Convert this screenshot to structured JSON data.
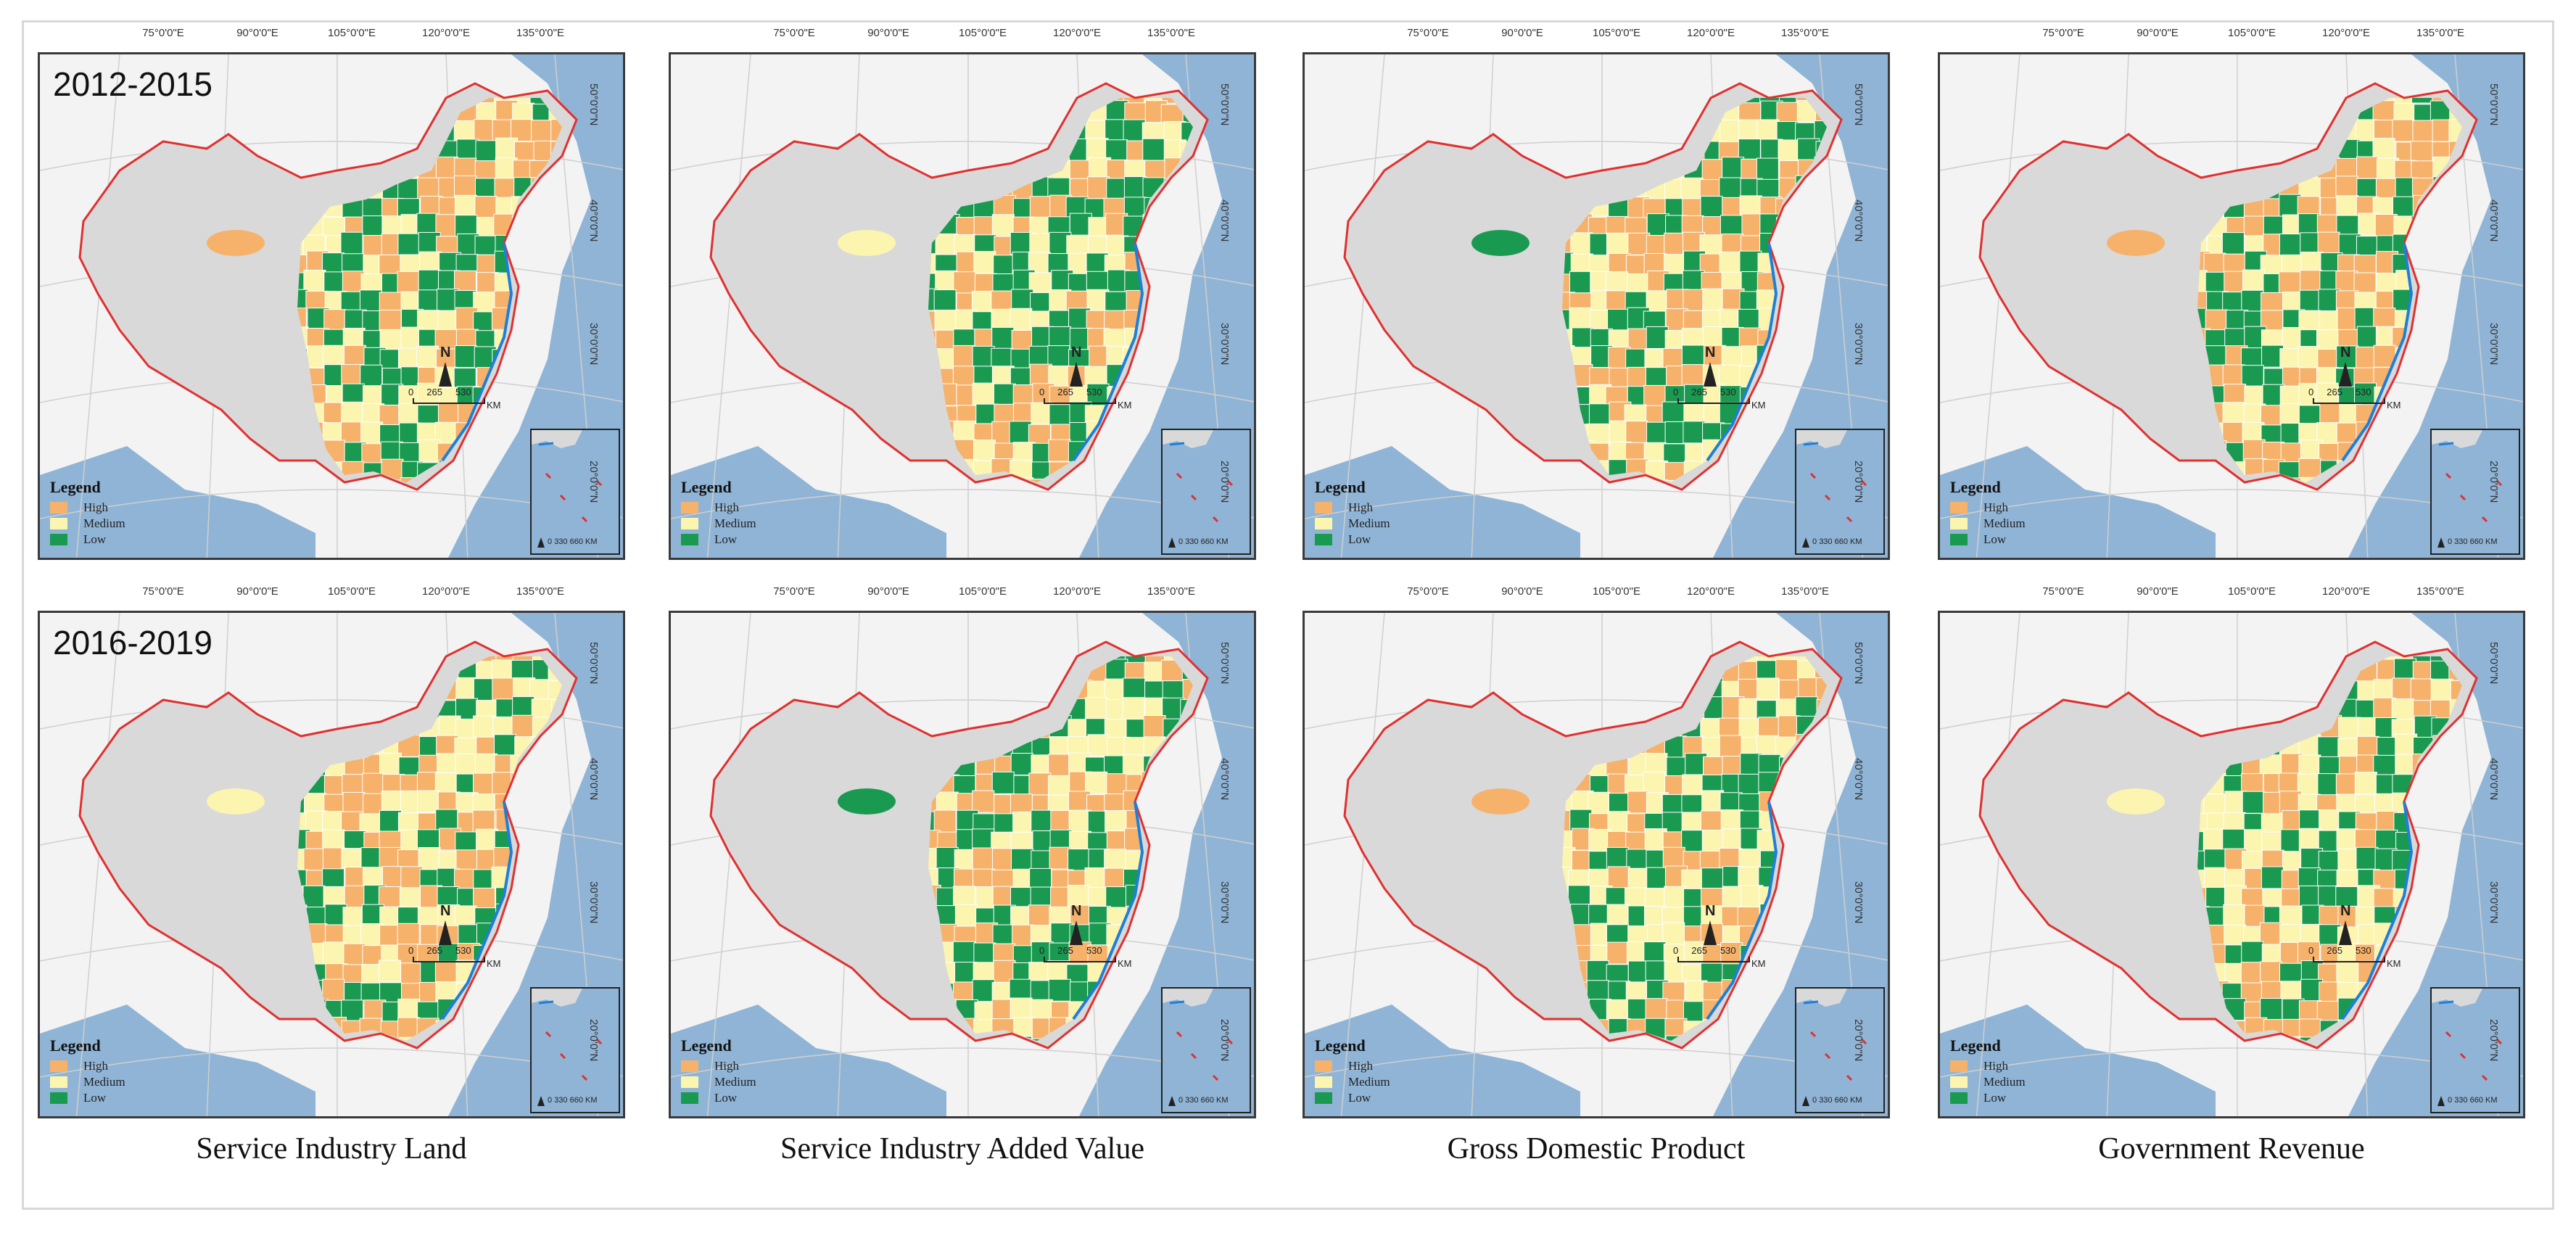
{
  "colors": {
    "high": "#f6b26b",
    "medium": "#fbf5b0",
    "low": "#1a9a50",
    "background": "#f3f3f3",
    "land": "#d9d9d9",
    "sea": "#8fb4d6",
    "border": "#e03030"
  },
  "rows": [
    {
      "period": "2012-2015"
    },
    {
      "period": "2016-2019"
    }
  ],
  "columns": [
    {
      "caption": "Service Industry Land"
    },
    {
      "caption": "Service Industry Added Value"
    },
    {
      "caption": "Gross Domestic Product"
    },
    {
      "caption": "Government Revenue"
    }
  ],
  "longitude_labels": [
    "75°0'0\"E",
    "90°0'0\"E",
    "105°0'0\"E",
    "120°0'0\"E",
    "135°0'0\"E"
  ],
  "latitude_labels": [
    "50°0'0\"N",
    "40°0'0\"N",
    "30°0'0\"N",
    "20°0'0\"N"
  ],
  "legend": {
    "title": "Legend",
    "items": [
      {
        "label": "High",
        "color_key": "high"
      },
      {
        "label": "Medium",
        "color_key": "medium"
      },
      {
        "label": "Low",
        "color_key": "low"
      }
    ]
  },
  "scale_bar": {
    "north": "N",
    "ticks": [
      "0",
      "265",
      "530"
    ],
    "unit": "KM"
  },
  "inset_scale": {
    "ticks": [
      "0",
      "330",
      "660"
    ],
    "unit": "KM"
  }
}
